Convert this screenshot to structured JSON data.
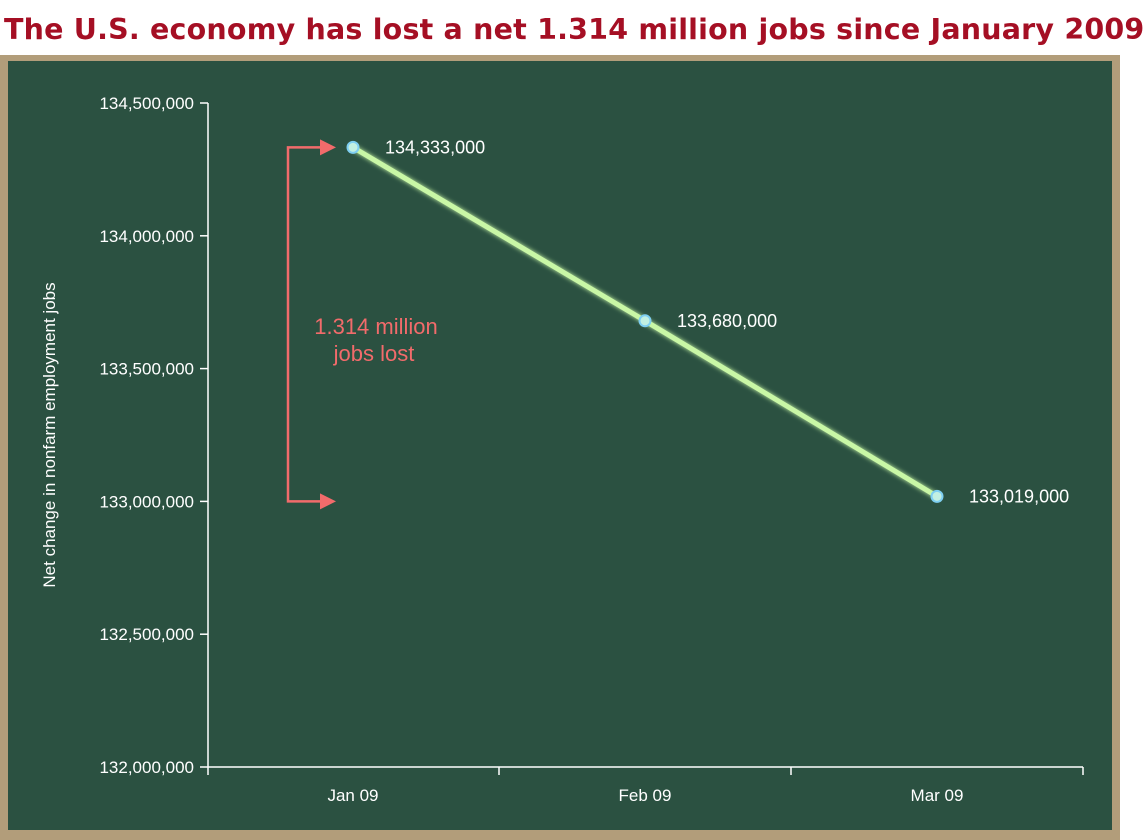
{
  "title": "The U.S. economy has lost a net 1.314 million jobs since January 2009",
  "colors": {
    "title": "#a50f24",
    "board_frame": "#b29d7a",
    "board": "#2b5141",
    "line": "#c9f7a6",
    "point_fill": "#c2f0e2",
    "point_stroke": "#7ecff2",
    "annotation": "#f26b6b",
    "axis": "#ffffff"
  },
  "annotation": {
    "line1": "1.314 million",
    "line2": "jobs lost"
  },
  "chart_data": {
    "type": "line",
    "title": "The U.S. economy has lost a net 1.314 million jobs since January 2009",
    "xlabel": "",
    "ylabel": "Net change in nonfarm employment jobs",
    "categories": [
      "Jan 09",
      "Feb 09",
      "Mar 09"
    ],
    "series": [
      {
        "values": [
          134333000,
          133680000,
          133019000
        ],
        "labels": [
          "134,333,000",
          "133,680,000",
          "133,019,000"
        ]
      }
    ],
    "ylim": [
      132000000,
      134500000
    ],
    "yticks": [
      132000000,
      132500000,
      133000000,
      133500000,
      134000000,
      134500000
    ],
    "ytick_labels": [
      "132,000,000",
      "132,500,000",
      "133,000,000",
      "133,500,000",
      "134,000,000",
      "134,500,000"
    ],
    "grid": false,
    "legend": "none"
  }
}
